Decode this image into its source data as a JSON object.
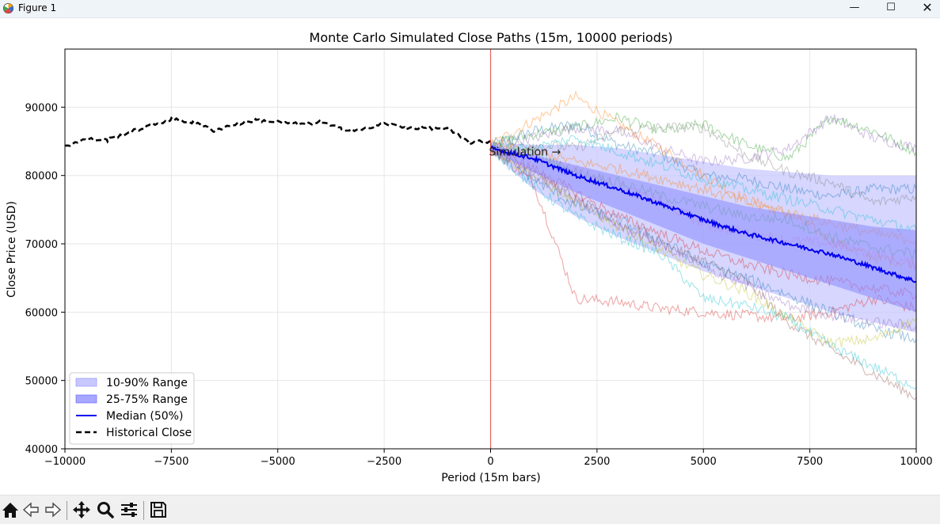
{
  "window": {
    "title": "Figure 1",
    "minimize": "—",
    "maximize": "☐",
    "close": "✕"
  },
  "toolbar": {
    "buttons": [
      {
        "name": "home-icon"
      },
      {
        "name": "back-icon"
      },
      {
        "name": "forward-icon"
      },
      {
        "name": "pan-icon"
      },
      {
        "name": "zoom-icon"
      },
      {
        "name": "configure-icon"
      },
      {
        "name": "save-icon"
      }
    ]
  },
  "chart_data": {
    "type": "line",
    "title": "Monte Carlo Simulated Close Paths (15m, 10000 periods)",
    "xlabel": "Period (15m bars)",
    "ylabel": "Close Price (USD)",
    "xlim": [
      -10000,
      10000
    ],
    "ylim": [
      40000,
      98500
    ],
    "xticks": [
      -10000,
      -7500,
      -5000,
      -2500,
      0,
      2500,
      5000,
      7500,
      10000
    ],
    "xtick_labels": [
      "−10000",
      "−7500",
      "−5000",
      "−2500",
      "0",
      "2500",
      "5000",
      "7500",
      "10000"
    ],
    "yticks": [
      40000,
      50000,
      60000,
      70000,
      80000,
      90000
    ],
    "ytick_labels": [
      "40000",
      "50000",
      "60000",
      "70000",
      "80000",
      "90000"
    ],
    "grid": true,
    "legend_position": "lower-left",
    "legend": [
      "10-90% Range",
      "25-75% Range",
      "Median (50%)",
      "Historical Close"
    ],
    "annotation": {
      "text": "Simulation →",
      "x": 0,
      "y": 83500
    },
    "vline": {
      "x": 0,
      "color": "#e8413c"
    },
    "historical": {
      "name": "Historical Close",
      "color": "#000000",
      "x": [
        -10000,
        -9500,
        -9000,
        -8500,
        -8000,
        -7500,
        -7000,
        -6500,
        -6000,
        -5500,
        -5000,
        -4500,
        -4000,
        -3500,
        -3000,
        -2500,
        -2000,
        -1500,
        -1000,
        -500,
        0
      ],
      "y": [
        84300,
        85300,
        85200,
        86300,
        87300,
        88200,
        87800,
        86600,
        87500,
        88100,
        87800,
        87500,
        87800,
        86800,
        86700,
        87600,
        87000,
        87000,
        86800,
        84800,
        85000
      ]
    },
    "median": {
      "name": "Median (50%)",
      "color": "#0000ee",
      "x": [
        0,
        1000,
        2000,
        3000,
        4000,
        5000,
        6000,
        7000,
        8000,
        9000,
        10000
      ],
      "y": [
        84000,
        82500,
        80000,
        78000,
        75800,
        73500,
        71500,
        70000,
        68500,
        66500,
        64500
      ]
    },
    "band_10_90": {
      "name": "10-90% Range",
      "color": "#c8c8ff",
      "x": [
        0,
        1000,
        2000,
        3000,
        4000,
        5000,
        6000,
        7000,
        8000,
        9000,
        10000
      ],
      "lower": [
        83500,
        78000,
        74000,
        71000,
        68500,
        66000,
        64000,
        62000,
        60000,
        58500,
        57000
      ],
      "upper": [
        84800,
        84500,
        84500,
        84000,
        83000,
        82000,
        81000,
        80500,
        80000,
        80000,
        80000
      ]
    },
    "band_25_75": {
      "name": "25-75% Range",
      "color": "#8a8aff",
      "x": [
        0,
        1000,
        2000,
        3000,
        4000,
        5000,
        6000,
        7000,
        8000,
        9000,
        10000
      ],
      "lower": [
        83800,
        80500,
        77500,
        75000,
        72500,
        70000,
        68000,
        66000,
        64000,
        62000,
        60000
      ],
      "upper": [
        84500,
        83000,
        81500,
        80000,
        78500,
        77000,
        75500,
        74500,
        73500,
        72500,
        72000
      ]
    },
    "sample_paths": [
      {
        "color": "#1f77b4",
        "x": [
          0,
          1000,
          2000,
          3000,
          4000,
          5000,
          6000,
          7000,
          8000,
          9000,
          10000
        ],
        "y": [
          84500,
          86500,
          87500,
          84500,
          83000,
          80000,
          79500,
          78000,
          77000,
          78000,
          78000
        ]
      },
      {
        "color": "#ff7f0e",
        "x": [
          0,
          1000,
          2000,
          3000,
          4000,
          5000,
          6000,
          7000,
          8000,
          9000,
          10000
        ],
        "y": [
          84500,
          88000,
          91500,
          87500,
          84000,
          80000,
          76500,
          74500,
          70500,
          68000,
          67000
        ]
      },
      {
        "color": "#2ca02c",
        "x": [
          0,
          1000,
          2000,
          3000,
          4000,
          5000,
          6000,
          7000,
          8000,
          9000,
          10000
        ],
        "y": [
          84500,
          86000,
          87000,
          88500,
          86500,
          87500,
          84500,
          82500,
          88500,
          86500,
          83500
        ]
      },
      {
        "color": "#d62728",
        "x": [
          0,
          1000,
          2000,
          3000,
          4000,
          5000,
          6000,
          7000,
          8000,
          9000,
          10000
        ],
        "y": [
          84000,
          79000,
          62000,
          61500,
          60500,
          60000,
          59500,
          59000,
          60000,
          62000,
          60500
        ]
      },
      {
        "color": "#9467bd",
        "x": [
          0,
          1000,
          2000,
          3000,
          4000,
          5000,
          6000,
          7000,
          8000,
          9000,
          10000
        ],
        "y": [
          84500,
          85500,
          87000,
          86500,
          84000,
          82000,
          82500,
          84000,
          88500,
          85500,
          84000
        ]
      },
      {
        "color": "#8c564b",
        "x": [
          0,
          1000,
          2000,
          3000,
          4000,
          5000,
          6000,
          7000,
          8000,
          9000,
          10000
        ],
        "y": [
          84000,
          81000,
          76500,
          73000,
          70000,
          67500,
          64500,
          58500,
          54500,
          51000,
          47500
        ]
      },
      {
        "color": "#e377c2",
        "x": [
          0,
          1000,
          2000,
          3000,
          4000,
          5000,
          6000,
          7000,
          8000,
          9000,
          10000
        ],
        "y": [
          84000,
          82500,
          81000,
          78500,
          76000,
          73000,
          71500,
          70500,
          70000,
          68500,
          67000
        ]
      },
      {
        "color": "#7f7f7f",
        "x": [
          0,
          1000,
          2000,
          3000,
          4000,
          5000,
          6000,
          7000,
          8000,
          9000,
          10000
        ],
        "y": [
          84500,
          84500,
          84000,
          86500,
          87000,
          87000,
          83000,
          80500,
          79000,
          76000,
          77000
        ]
      },
      {
        "color": "#bcbd22",
        "x": [
          0,
          1000,
          2000,
          3000,
          4000,
          5000,
          6000,
          7000,
          8000,
          9000,
          10000
        ],
        "y": [
          84000,
          80000,
          76000,
          72500,
          69000,
          65500,
          63000,
          59000,
          55500,
          56000,
          59000
        ]
      },
      {
        "color": "#17becf",
        "x": [
          0,
          1000,
          2000,
          3000,
          4000,
          5000,
          6000,
          7000,
          8000,
          9000,
          10000
        ],
        "y": [
          84000,
          78500,
          74000,
          71000,
          68500,
          62000,
          61000,
          59000,
          55000,
          52000,
          49000
        ]
      },
      {
        "color": "#1f77b4",
        "x": [
          0,
          1000,
          2000,
          3000,
          4000,
          5000,
          6000,
          7000,
          8000,
          9000,
          10000
        ],
        "y": [
          84000,
          79500,
          75500,
          73500,
          70500,
          67000,
          65000,
          62500,
          60000,
          57500,
          56000
        ]
      },
      {
        "color": "#ff7f0e",
        "x": [
          0,
          1000,
          2000,
          3000,
          4000,
          5000,
          6000,
          7000,
          8000,
          9000,
          10000
        ],
        "y": [
          84500,
          83500,
          82000,
          81000,
          79500,
          78000,
          76000,
          74500,
          73000,
          71500,
          70500
        ]
      },
      {
        "color": "#2ca02c",
        "x": [
          0,
          1000,
          2000,
          3000,
          4000,
          5000,
          6000,
          7000,
          8000,
          9000,
          10000
        ],
        "y": [
          84500,
          83000,
          80500,
          79000,
          77000,
          75500,
          74000,
          73500,
          71000,
          69500,
          68500
        ]
      },
      {
        "color": "#d62728",
        "x": [
          0,
          1000,
          2000,
          3000,
          4000,
          5000,
          6000,
          7000,
          8000,
          9000,
          10000
        ],
        "y": [
          84000,
          81000,
          77500,
          74000,
          71500,
          69000,
          67000,
          65500,
          64500,
          63500,
          62500
        ]
      },
      {
        "color": "#9467bd",
        "x": [
          0,
          1000,
          2000,
          3000,
          4000,
          5000,
          6000,
          7000,
          8000,
          9000,
          10000
        ],
        "y": [
          84000,
          80000,
          76500,
          72500,
          70000,
          66500,
          64000,
          61000,
          59500,
          58500,
          58000
        ]
      },
      {
        "color": "#17becf",
        "x": [
          0,
          1000,
          2000,
          3000,
          4000,
          5000,
          6000,
          7000,
          8000,
          9000,
          10000
        ],
        "y": [
          84500,
          84000,
          85500,
          83500,
          81500,
          79500,
          78000,
          76500,
          75000,
          73500,
          72000
        ]
      }
    ]
  }
}
